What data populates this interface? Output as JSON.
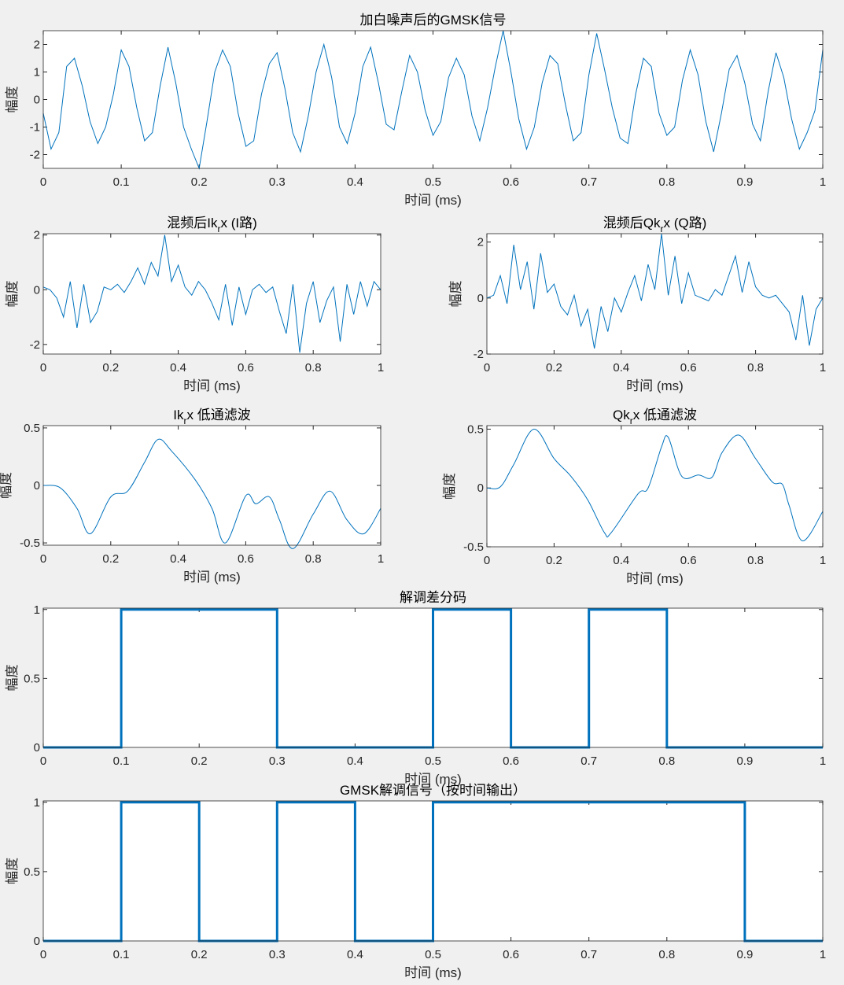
{
  "chart_data": [
    {
      "id": "noisy",
      "type": "line",
      "title": "加白噪声后的GMSK信号",
      "title_sub": "",
      "title_post": "",
      "xlabel": "时间 (ms)",
      "ylabel": "幅度",
      "xlim": [
        0,
        1
      ],
      "ylim": [
        -2.5,
        2.5
      ],
      "xticks": [
        "0",
        "0.1",
        "0.2",
        "0.3",
        "0.4",
        "0.5",
        "0.6",
        "0.7",
        "0.8",
        "0.9",
        "1"
      ],
      "yticks": [
        "-2",
        "-1",
        "0",
        "1",
        "2"
      ],
      "step": "none",
      "values": [
        -0.5,
        -1.8,
        -1.2,
        1.2,
        1.5,
        0.5,
        -0.8,
        -1.6,
        -1.0,
        0.2,
        1.8,
        1.2,
        -0.3,
        -1.5,
        -1.2,
        0.5,
        1.9,
        0.6,
        -1.0,
        -1.8,
        -2.5,
        -0.8,
        1.0,
        1.8,
        1.2,
        -0.5,
        -1.7,
        -1.5,
        0.2,
        1.3,
        1.7,
        0.4,
        -1.2,
        -1.9,
        -0.6,
        1.0,
        2.0,
        0.8,
        -1.0,
        -1.6,
        -0.5,
        1.2,
        1.9,
        0.6,
        -0.9,
        -1.1,
        0.3,
        1.6,
        1.0,
        -0.4,
        -1.3,
        -0.8,
        0.8,
        1.5,
        0.9,
        -0.6,
        -1.5,
        -0.3,
        1.2,
        2.5,
        1.0,
        -0.7,
        -1.8,
        -1.0,
        0.6,
        1.6,
        1.3,
        -0.2,
        -1.5,
        -1.2,
        0.9,
        2.4,
        1.1,
        -0.3,
        -1.4,
        -1.6,
        0.2,
        1.5,
        1.2,
        -0.5,
        -1.3,
        -1.0,
        0.7,
        1.8,
        0.9,
        -0.8,
        -1.9,
        -0.5,
        1.1,
        1.6,
        0.6,
        -0.9,
        -1.5,
        0.3,
        1.7,
        0.8,
        -0.7,
        -1.8,
        -1.2,
        -0.4,
        1.8
      ]
    },
    {
      "id": "mix-i",
      "type": "line",
      "title": "混频后Ik",
      "title_sub": "r",
      "title_post": "x (I路)",
      "xlabel": "时间 (ms)",
      "ylabel": "幅度",
      "xlim": [
        0,
        1
      ],
      "ylim": [
        -2.35,
        2.05
      ],
      "xticks": [
        "0",
        "0.2",
        "0.4",
        "0.6",
        "0.8",
        "1"
      ],
      "yticks": [
        "-2",
        "0",
        "2"
      ],
      "values": [
        0.1,
        0.0,
        -0.3,
        -1.0,
        0.3,
        -1.4,
        0.2,
        -1.2,
        -0.8,
        0.1,
        0.0,
        0.2,
        -0.1,
        0.3,
        0.8,
        0.2,
        1.0,
        0.5,
        2.0,
        0.3,
        0.9,
        0.1,
        -0.2,
        0.3,
        0.0,
        -0.5,
        -1.1,
        0.2,
        -1.3,
        0.1,
        -0.9,
        0.0,
        0.2,
        -0.1,
        0.1,
        -0.8,
        -1.6,
        0.2,
        -2.3,
        -0.5,
        0.3,
        -1.2,
        -0.4,
        0.1,
        -1.9,
        0.2,
        -0.9,
        0.3,
        -0.6,
        0.3,
        0.0
      ]
    },
    {
      "id": "mix-q",
      "type": "line",
      "title": "混频后Qk",
      "title_sub": "r",
      "title_post": "x (Q路)",
      "xlabel": "时间 (ms)",
      "ylabel": "幅度",
      "xlim": [
        0,
        1
      ],
      "ylim": [
        -2,
        2.3
      ],
      "xticks": [
        "0",
        "0.2",
        "0.4",
        "0.6",
        "0.8",
        "1"
      ],
      "yticks": [
        "-2",
        "0",
        "2"
      ],
      "values": [
        0.0,
        0.1,
        0.8,
        -0.2,
        1.9,
        0.3,
        1.3,
        -0.4,
        1.6,
        0.2,
        0.5,
        -0.3,
        -0.6,
        0.1,
        -1.0,
        -0.4,
        -1.8,
        -0.3,
        -1.2,
        0.0,
        -0.5,
        0.2,
        0.8,
        -0.1,
        1.2,
        0.3,
        2.3,
        0.1,
        1.5,
        -0.2,
        0.9,
        0.1,
        0.0,
        -0.1,
        0.3,
        0.1,
        0.8,
        1.5,
        0.2,
        1.3,
        0.4,
        0.1,
        0.0,
        0.1,
        -0.2,
        -0.5,
        -1.5,
        0.1,
        -1.7,
        -0.4,
        0.0
      ]
    },
    {
      "id": "lpf-i",
      "type": "line",
      "title": "Ik",
      "title_sub": "r",
      "title_post": "x 低通滤波",
      "xlabel": "时间 (ms)",
      "ylabel": "幅度",
      "xlim": [
        0,
        1
      ],
      "ylim": [
        -0.52,
        0.52
      ],
      "xticks": [
        "0",
        "0.2",
        "0.4",
        "0.6",
        "0.8",
        "1"
      ],
      "yticks": [
        "-0.5",
        "0",
        "0.5"
      ],
      "points": [
        [
          0,
          0
        ],
        [
          0.05,
          -0.02
        ],
        [
          0.1,
          -0.2
        ],
        [
          0.14,
          -0.42
        ],
        [
          0.2,
          -0.1
        ],
        [
          0.25,
          -0.05
        ],
        [
          0.3,
          0.2
        ],
        [
          0.34,
          0.4
        ],
        [
          0.38,
          0.3
        ],
        [
          0.45,
          0.05
        ],
        [
          0.5,
          -0.2
        ],
        [
          0.54,
          -0.5
        ],
        [
          0.6,
          -0.09
        ],
        [
          0.63,
          -0.16
        ],
        [
          0.67,
          -0.1
        ],
        [
          0.7,
          -0.3
        ],
        [
          0.74,
          -0.55
        ],
        [
          0.8,
          -0.25
        ],
        [
          0.85,
          -0.05
        ],
        [
          0.9,
          -0.3
        ],
        [
          0.95,
          -0.42
        ],
        [
          1,
          -0.2
        ]
      ]
    },
    {
      "id": "lpf-q",
      "type": "line",
      "title": "Qk",
      "title_sub": "r",
      "title_post": "x 低通滤波",
      "xlabel": "时间 (ms)",
      "ylabel": "幅度",
      "xlim": [
        0,
        1
      ],
      "ylim": [
        -0.5,
        0.53
      ],
      "xticks": [
        "0",
        "0.2",
        "0.4",
        "0.6",
        "0.8",
        "1"
      ],
      "yticks": [
        "-0.5",
        "0",
        "0.5"
      ],
      "points": [
        [
          0,
          0
        ],
        [
          0.04,
          0.01
        ],
        [
          0.08,
          0.2
        ],
        [
          0.14,
          0.5
        ],
        [
          0.2,
          0.25
        ],
        [
          0.25,
          0.1
        ],
        [
          0.3,
          -0.1
        ],
        [
          0.35,
          -0.38
        ],
        [
          0.37,
          -0.38
        ],
        [
          0.45,
          -0.05
        ],
        [
          0.48,
          0.0
        ],
        [
          0.52,
          0.35
        ],
        [
          0.54,
          0.43
        ],
        [
          0.58,
          0.1
        ],
        [
          0.63,
          0.11
        ],
        [
          0.67,
          0.09
        ],
        [
          0.7,
          0.3
        ],
        [
          0.75,
          0.45
        ],
        [
          0.8,
          0.25
        ],
        [
          0.85,
          0.05
        ],
        [
          0.88,
          0.03
        ],
        [
          0.9,
          -0.15
        ],
        [
          0.94,
          -0.45
        ],
        [
          1,
          -0.2
        ]
      ]
    },
    {
      "id": "diff",
      "type": "line",
      "title": "解调差分码",
      "title_sub": "",
      "title_post": "",
      "xlabel": "时间 (ms)",
      "ylabel": "幅度",
      "xlim": [
        0,
        1
      ],
      "ylim": [
        0,
        1.01
      ],
      "xticks": [
        "0",
        "0.1",
        "0.2",
        "0.3",
        "0.4",
        "0.5",
        "0.6",
        "0.7",
        "0.8",
        "0.9",
        "1"
      ],
      "yticks": [
        "0",
        "0.5",
        "1"
      ],
      "bits": [
        0,
        1,
        1,
        0,
        0,
        1,
        0,
        1,
        0,
        0
      ]
    },
    {
      "id": "demod",
      "type": "line",
      "title": "GMSK解调信号（按时间输出）",
      "title_sub": "",
      "title_post": "",
      "xlabel": "时间 (ms)",
      "ylabel": "幅度",
      "xlim": [
        0,
        1
      ],
      "ylim": [
        0,
        1.01
      ],
      "xticks": [
        "0",
        "0.1",
        "0.2",
        "0.3",
        "0.4",
        "0.5",
        "0.6",
        "0.7",
        "0.8",
        "0.9",
        "1"
      ],
      "yticks": [
        "0",
        "0.5",
        "1"
      ],
      "bits": [
        0,
        1,
        0,
        1,
        0,
        1,
        1,
        1,
        1,
        0
      ]
    }
  ],
  "colors": {
    "line": "#0072bd"
  }
}
